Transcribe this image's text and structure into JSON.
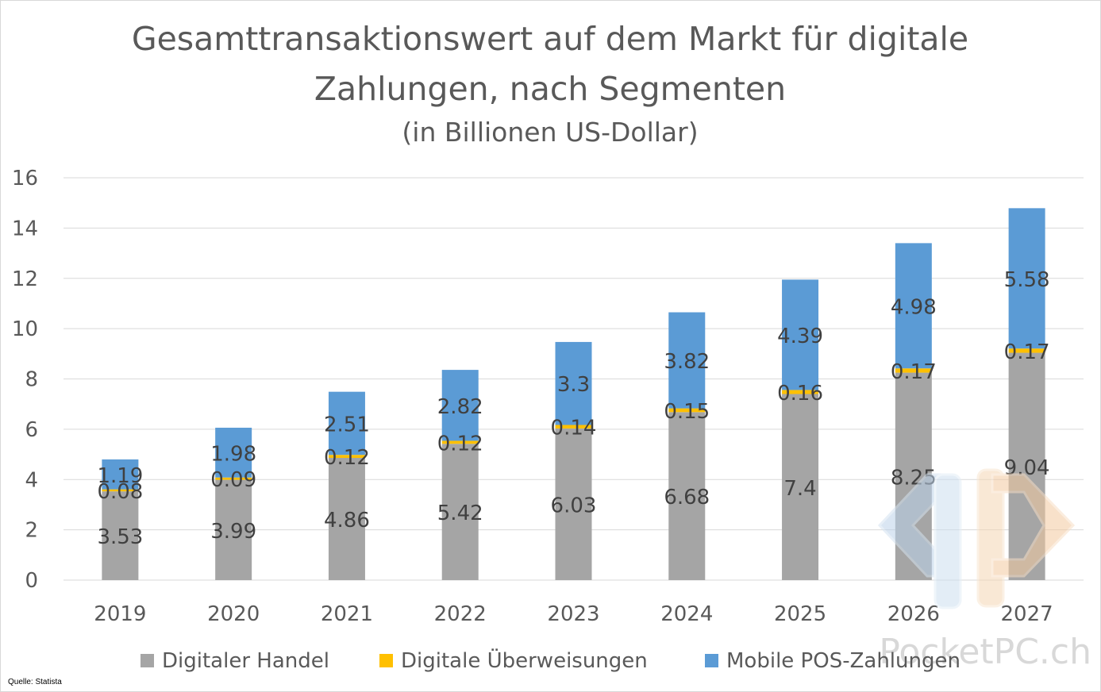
{
  "chart_data": {
    "type": "bar",
    "stacked": true,
    "title": "Gesamttransaktionswert auf dem Markt für digitale Zahlungen, nach Segmenten",
    "title_lines": [
      "Gesamttransaktionswert auf dem Markt für digitale",
      "Zahlungen, nach Segmenten"
    ],
    "subtitle": "(in Billionen US-Dollar)",
    "categories": [
      "2019",
      "2020",
      "2021",
      "2022",
      "2023",
      "2024",
      "2025",
      "2026",
      "2027"
    ],
    "series": [
      {
        "name": "Digitaler Handel",
        "color": "#a5a5a5",
        "values": [
          3.53,
          3.99,
          4.86,
          5.42,
          6.03,
          6.68,
          7.4,
          8.25,
          9.04
        ]
      },
      {
        "name": "Digitale Überweisungen",
        "color": "#ffc000",
        "values": [
          0.08,
          0.09,
          0.12,
          0.12,
          0.14,
          0.15,
          0.16,
          0.17,
          0.17
        ]
      },
      {
        "name": "Mobile POS-Zahlungen",
        "color": "#5b9bd5",
        "values": [
          1.19,
          1.98,
          2.51,
          2.82,
          3.3,
          3.82,
          4.39,
          4.98,
          5.58
        ]
      }
    ],
    "ylim": [
      0,
      16
    ],
    "yticks": [
      "0",
      "2",
      "4",
      "6",
      "8",
      "10",
      "12",
      "14",
      "16"
    ],
    "grid": true,
    "legend_position": "bottom"
  },
  "source": "Quelle: Statista",
  "watermark": "PocketPC.ch"
}
